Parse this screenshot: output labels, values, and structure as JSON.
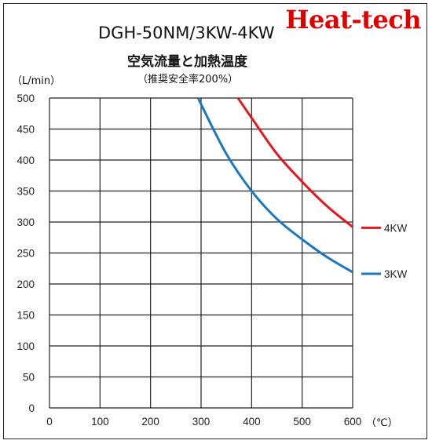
{
  "brand": "Heat-tech",
  "chart_data": {
    "type": "line",
    "title": "DGH-50NM/3KW-4KW",
    "subtitle": "空気流量と加熱温度",
    "note": "（推奨安全率200%）",
    "ylabel": "（L/min）",
    "xlabel": "（℃）",
    "xlim": [
      0,
      600
    ],
    "ylim": [
      0,
      500
    ],
    "xticks": [
      0,
      100,
      200,
      300,
      400,
      500,
      600
    ],
    "yticks": [
      0,
      50,
      100,
      150,
      200,
      250,
      300,
      350,
      400,
      450,
      500
    ],
    "grid": true,
    "legend": "right",
    "series": [
      {
        "name": "4KW",
        "color": "#e8141e",
        "x": [
          373,
          400,
          450,
          500,
          550,
          600
        ],
        "y": [
          500,
          468,
          410,
          365,
          325,
          292
        ]
      },
      {
        "name": "3KW",
        "color": "#1a78c2",
        "x": [
          295,
          300,
          350,
          400,
          450,
          500,
          550,
          600
        ],
        "y": [
          500,
          490,
          410,
          350,
          305,
          272,
          243,
          219
        ]
      }
    ]
  }
}
